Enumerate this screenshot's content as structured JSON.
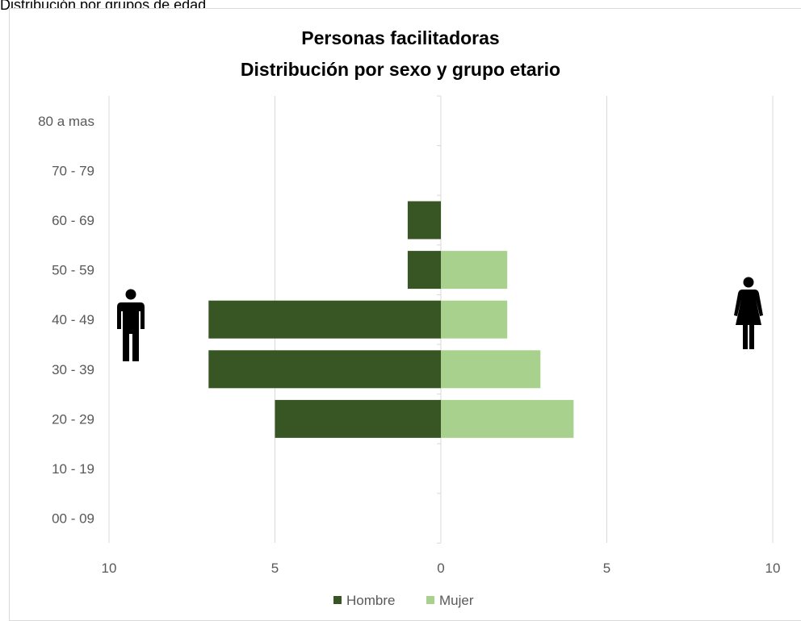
{
  "caption": "Distribución por grupos de edad",
  "chart_data": {
    "type": "bar",
    "orientation": "horizontal",
    "title": "Personas facilitadoras",
    "subtitle": "Distribución por sexo y grupo etario",
    "categories": [
      "00 - 09",
      "10 - 19",
      "20 - 29",
      "30 - 39",
      "40 - 49",
      "50 - 59",
      "60 - 69",
      "70 - 79",
      "80 a mas"
    ],
    "series": [
      {
        "name": "Hombre",
        "color": "#375623",
        "values": [
          0,
          0,
          5,
          7,
          7,
          1,
          1,
          0,
          0
        ]
      },
      {
        "name": "Mujer",
        "color": "#a9d18e",
        "values": [
          0,
          0,
          4,
          3,
          2,
          2,
          0,
          0,
          0
        ]
      }
    ],
    "xlim": [
      -10,
      10
    ],
    "x_ticks": [
      -10,
      -5,
      0,
      5,
      10
    ],
    "x_tick_labels": [
      "10",
      "5",
      "0",
      "5",
      "10"
    ],
    "grid": true,
    "legend_position": "bottom",
    "icons": [
      "male-figure-icon",
      "female-figure-icon"
    ]
  }
}
